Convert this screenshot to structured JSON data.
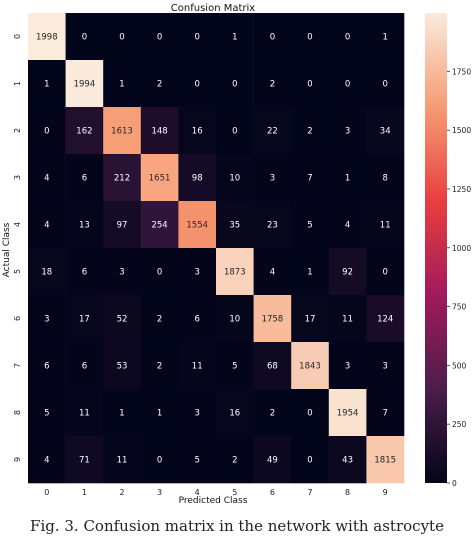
{
  "chart_data": {
    "type": "heatmap",
    "title": "Confusion Matrix",
    "xlabel": "Predicted Class",
    "ylabel": "Actual Class",
    "x_ticks": [
      "0",
      "1",
      "2",
      "3",
      "4",
      "5",
      "6",
      "7",
      "8",
      "9"
    ],
    "y_ticks": [
      "0",
      "1",
      "2",
      "3",
      "4",
      "5",
      "6",
      "7",
      "8",
      "9"
    ],
    "matrix": [
      [
        1998,
        0,
        0,
        0,
        0,
        1,
        0,
        0,
        0,
        1
      ],
      [
        1,
        1994,
        1,
        2,
        0,
        0,
        2,
        0,
        0,
        0
      ],
      [
        0,
        162,
        1613,
        148,
        16,
        0,
        22,
        2,
        3,
        34
      ],
      [
        4,
        6,
        212,
        1651,
        98,
        10,
        3,
        7,
        1,
        8
      ],
      [
        4,
        13,
        97,
        254,
        1554,
        35,
        23,
        5,
        4,
        11
      ],
      [
        18,
        6,
        3,
        0,
        3,
        1873,
        4,
        1,
        92,
        0
      ],
      [
        3,
        17,
        52,
        2,
        6,
        10,
        1758,
        17,
        11,
        124
      ],
      [
        6,
        6,
        53,
        2,
        11,
        5,
        68,
        1843,
        3,
        3
      ],
      [
        5,
        11,
        1,
        1,
        3,
        16,
        2,
        0,
        1954,
        7
      ],
      [
        4,
        71,
        11,
        0,
        5,
        2,
        49,
        0,
        43,
        1815
      ]
    ],
    "colorbar": {
      "min": 0,
      "max": 1998,
      "ticks": [
        0,
        250,
        500,
        750,
        1000,
        1250,
        1500,
        1750
      ],
      "colormap": "rocket",
      "colors": [
        "#03051a",
        "#4c1d4b",
        "#a11a5b",
        "#e83f3f",
        "#f69c73",
        "#faebdd"
      ]
    }
  },
  "caption": "Fig. 3. Confusion matrix in the network with astrocyte"
}
